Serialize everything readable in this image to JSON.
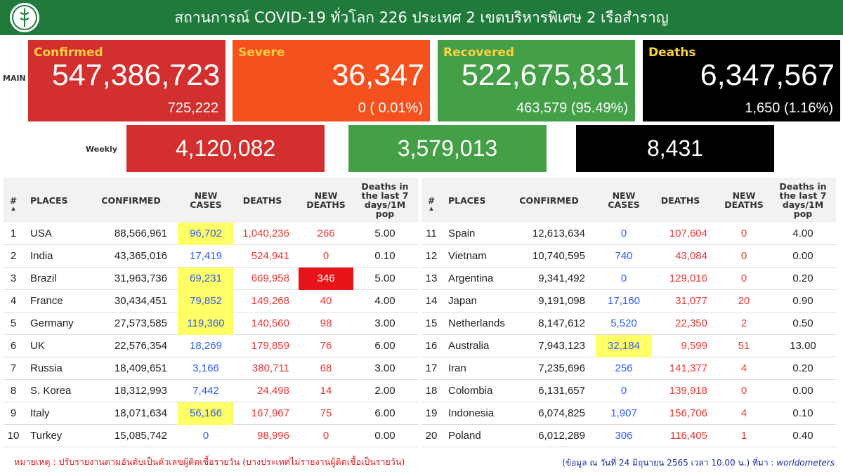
{
  "header": {
    "title": "สถานการณ์ COVID-19 ทั่วโลก 226 ประเทศ 2 เขตบริหารพิเศษ 2 เรือสำราญ"
  },
  "main": {
    "label": "MAIN",
    "cards": [
      {
        "title": "Confirmed",
        "total": "547,386,723",
        "sub": "725,222"
      },
      {
        "title": "Severe",
        "total": "36,347",
        "sub": "0 ( 0.01%)"
      },
      {
        "title": "Recovered",
        "total": "522,675,831",
        "sub": "463,579 (95.49%)"
      },
      {
        "title": "Deaths",
        "total": "6,347,567",
        "sub": "1,650 (1.16%)"
      }
    ]
  },
  "weekly": {
    "label": "Weekly",
    "values": [
      "4,120,082",
      "3,579,013",
      "8,431"
    ]
  },
  "table": {
    "headers": [
      "#",
      "PLACES",
      "CONFIRMED",
      "NEW CASES",
      "DEATHS",
      "NEW DEATHS",
      "Deaths in the last 7 days/1M pop"
    ],
    "left": [
      [
        "1",
        "USA",
        "88,566,961",
        "96,702",
        "1,040,236",
        "266",
        "5.00"
      ],
      [
        "2",
        "India",
        "43,365,016",
        "17,419",
        "524,941",
        "0",
        "0.10"
      ],
      [
        "3",
        "Brazil",
        "31,963,736",
        "69,231",
        "669,958",
        "346",
        "5.00"
      ],
      [
        "4",
        "France",
        "30,434,451",
        "79,852",
        "149,268",
        "40",
        "4.00"
      ],
      [
        "5",
        "Germany",
        "27,573,585",
        "119,360",
        "140,560",
        "98",
        "3.00"
      ],
      [
        "6",
        "UK",
        "22,576,354",
        "18,269",
        "179,859",
        "76",
        "6.00"
      ],
      [
        "7",
        "Russia",
        "18,409,651",
        "3,166",
        "380,711",
        "68",
        "3.00"
      ],
      [
        "8",
        "S. Korea",
        "18,312,993",
        "7,442",
        "24,498",
        "14",
        "2.00"
      ],
      [
        "9",
        "Italy",
        "18,071,634",
        "56,166",
        "167,967",
        "75",
        "6.00"
      ],
      [
        "10",
        "Turkey",
        "15,085,742",
        "0",
        "98,996",
        "0",
        "0.00"
      ]
    ],
    "right": [
      [
        "11",
        "Spain",
        "12,613,634",
        "0",
        "107,604",
        "0",
        "4.00"
      ],
      [
        "12",
        "Vietnam",
        "10,740,595",
        "740",
        "43,084",
        "0",
        "0.00"
      ],
      [
        "13",
        "Argentina",
        "9,341,492",
        "0",
        "129,016",
        "0",
        "0.20"
      ],
      [
        "14",
        "Japan",
        "9,191,098",
        "17,160",
        "31,077",
        "20",
        "0.90"
      ],
      [
        "15",
        "Netherlands",
        "8,147,612",
        "5,520",
        "22,350",
        "2",
        "0.50"
      ],
      [
        "16",
        "Australia",
        "7,943,123",
        "32,184",
        "9,599",
        "51",
        "13.00"
      ],
      [
        "17",
        "Iran",
        "7,235,696",
        "256",
        "141,377",
        "4",
        "0.20"
      ],
      [
        "18",
        "Colombia",
        "6,131,657",
        "0",
        "139,918",
        "0",
        "0.00"
      ],
      [
        "19",
        "Indonesia",
        "6,074,825",
        "1,907",
        "156,706",
        "4",
        "0.10"
      ],
      [
        "20",
        "Poland",
        "6,012,289",
        "306",
        "116,405",
        "1",
        "0.40"
      ]
    ]
  },
  "footer": {
    "note": "หมายเหตุ : ปรับรายงานตามอันดับเป็นตัวเลขผู้ติดเชื้อรายวัน (บางประเทศไม่รายงานผู้ติดเชื้อเป็นรายวัน)",
    "source": "(ข้อมูล ณ วันที่ 24 มิถุนายน 2565 เวลา 10.00 น.) ที่มา :",
    "source_name": "worldometers"
  }
}
